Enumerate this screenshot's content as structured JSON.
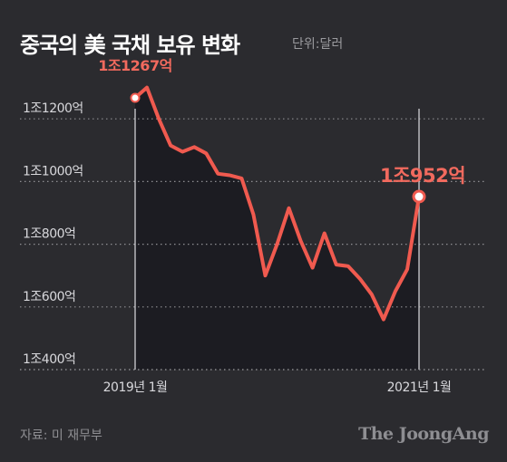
{
  "header": {
    "title": "중국의 美 국채 보유 변화",
    "unit": "단위:달러"
  },
  "footer": {
    "source": "자료: 미 재무부",
    "brand": "The JoongAng"
  },
  "colors": {
    "background": "#2b2b2f",
    "line": "#f05a4f",
    "area": "#1c1c22",
    "grid": "#8e8e92",
    "text": "#d8d8dc",
    "annotation": "#f26a5e"
  },
  "chart_data": {
    "type": "line",
    "title": "중국의 美 국채 보유 변화",
    "unit": "단위:달러",
    "ylabel": "",
    "xlabel": "",
    "ylim": [
      400,
      1400
    ],
    "y_ticks": [
      {
        "value": 400,
        "label": "1조400억"
      },
      {
        "value": 600,
        "label": "1조600억"
      },
      {
        "value": 800,
        "label": "1조800억"
      },
      {
        "value": 1000,
        "label": "1조1000억"
      },
      {
        "value": 1200,
        "label": "1조1200억"
      }
    ],
    "x_ticks": [
      {
        "index": 0,
        "label": "2019년 1월"
      },
      {
        "index": 24,
        "label": "2021년 1월"
      }
    ],
    "series": [
      {
        "values": [
          1267,
          1300,
          1200,
          1115,
          1095,
          1110,
          1090,
          1025,
          1020,
          1010,
          895,
          700,
          800,
          915,
          810,
          725,
          835,
          735,
          730,
          690,
          640,
          560,
          650,
          720,
          952
        ]
      }
    ],
    "annotations": [
      {
        "index": 0,
        "value": 1267,
        "label": "1조1267억",
        "marker": "start"
      },
      {
        "index": 24,
        "value": 952,
        "label": "1조952억",
        "marker": "end"
      }
    ],
    "grid": true
  }
}
